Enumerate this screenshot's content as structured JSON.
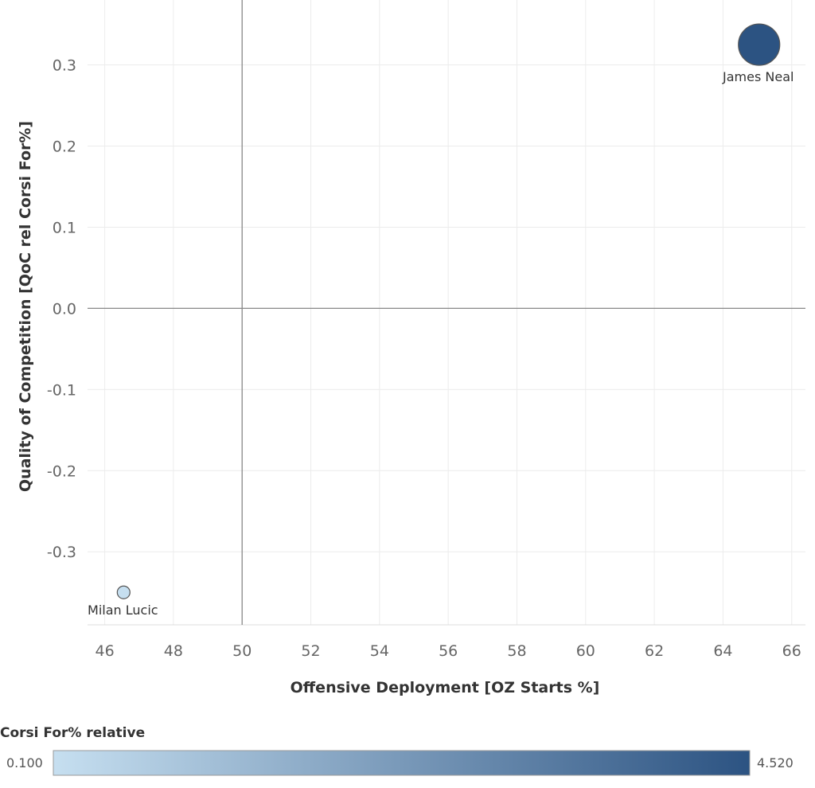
{
  "chart_data": {
    "type": "scatter",
    "xlabel": "Offensive Deployment [OZ Starts %]",
    "ylabel": "Quality of Competition [QoC rel Corsi For%]",
    "xlim": [
      45.5,
      66.4
    ],
    "ylim": [
      -0.39,
      0.38
    ],
    "x_ticks": [
      46,
      48,
      50,
      52,
      54,
      56,
      58,
      60,
      62,
      64,
      66
    ],
    "x_tick_labels": [
      "46",
      "48",
      "50",
      "52",
      "54",
      "56",
      "58",
      "60",
      "62",
      "64",
      "66"
    ],
    "y_ticks": [
      -0.3,
      -0.2,
      -0.1,
      0.0,
      0.1,
      0.2,
      0.3
    ],
    "y_tick_labels": [
      "-0.3",
      "-0.2",
      "-0.1",
      "0.0",
      "0.1",
      "0.2",
      "0.3"
    ],
    "reference_lines": {
      "x": 50,
      "y": 0.0
    },
    "grid": true,
    "points": [
      {
        "label": "James Neal",
        "x": 65.05,
        "y": 0.325,
        "color_value": 4.52
      },
      {
        "label": "Milan Lucic",
        "x": 46.55,
        "y": -0.35,
        "color_value": 0.1
      }
    ],
    "color_legend": {
      "title": "Corsi For% relative",
      "min_label": "0.100",
      "max_label": "4.520",
      "min": 0.1,
      "max": 4.52,
      "color_low": "#c6dff0",
      "color_high": "#2c5382"
    },
    "legend_position": "bottom"
  }
}
